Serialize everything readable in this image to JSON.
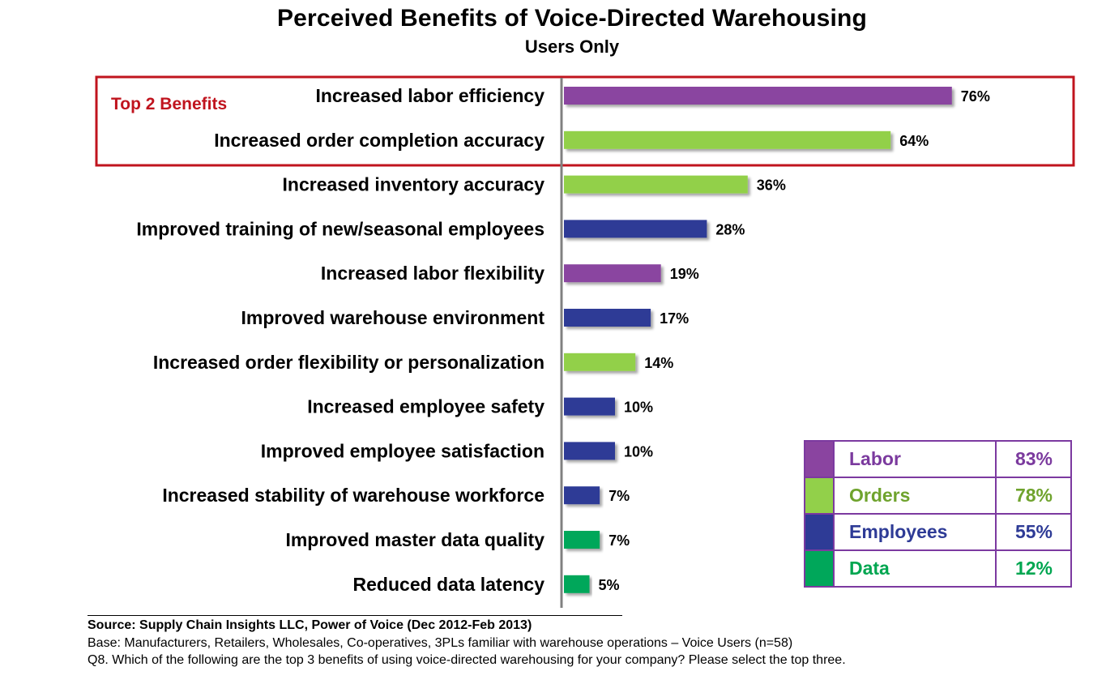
{
  "title": "Perceived Benefits of Voice-Directed Warehousing",
  "subtitle": "Users Only",
  "callout": {
    "label": "Top 2 Benefits",
    "color": "#c0141e"
  },
  "chart_data": {
    "type": "bar",
    "orientation": "horizontal",
    "title": "Perceived Benefits of Voice-Directed Warehousing",
    "subtitle": "Users Only",
    "xlim": [
      0,
      100
    ],
    "grid": false,
    "value_suffix": "%",
    "categories": [
      "Increased labor efficiency",
      "Increased order completion accuracy",
      "Increased inventory accuracy",
      "Improved training of new/seasonal employees",
      "Increased labor flexibility",
      "Improved warehouse environment",
      "Increased order flexibility or personalization",
      "Increased employee safety",
      "Improved employee satisfaction",
      "Increased stability of warehouse workforce",
      "Improved master data quality",
      "Reduced data latency"
    ],
    "values": [
      76,
      64,
      36,
      28,
      19,
      17,
      14,
      10,
      10,
      7,
      7,
      5
    ],
    "groups": [
      "Labor",
      "Orders",
      "Orders",
      "Employees",
      "Labor",
      "Employees",
      "Orders",
      "Employees",
      "Employees",
      "Employees",
      "Data",
      "Data"
    ]
  },
  "legend": {
    "placement": "bottom-right",
    "items": [
      {
        "name": "Labor",
        "value": "83%",
        "color": "#8a44a0"
      },
      {
        "name": "Orders",
        "value": "78%",
        "color": "#92d04a"
      },
      {
        "name": "Employees",
        "value": "55%",
        "color": "#2e3b96"
      },
      {
        "name": "Data",
        "value": "12%",
        "color": "#00a75a"
      }
    ],
    "text_colors": {
      "Labor": "#7b3a9e",
      "Orders": "#6fa32d",
      "Employees": "#2e3b96",
      "Data": "#00a650"
    }
  },
  "footer": {
    "source": "Source:  Supply Chain Insights LLC, Power of Voice (Dec 2012-Feb 2013)",
    "base": "Base:  Manufacturers,  Retailers, Wholesales, Co-operatives, 3PLs familiar with warehouse operations – Voice Users (n=58)",
    "question": "Q8. Which of the following are the top 3 benefits of using voice-directed warehousing for your company?  Please select the top three."
  }
}
